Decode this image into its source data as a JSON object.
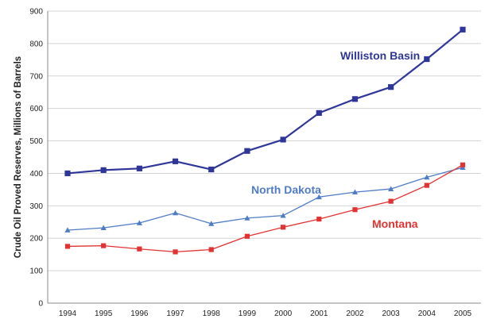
{
  "chart_data": {
    "type": "line",
    "title": "",
    "xlabel": "",
    "ylabel": "Crude Oil Proved Reserves, Millions of Barrels",
    "x": [
      "1994",
      "1995",
      "1996",
      "1997",
      "1998",
      "1999",
      "2000",
      "2001",
      "2002",
      "2003",
      "2004",
      "2005"
    ],
    "ylim": [
      0,
      900
    ],
    "yticks": [
      "0",
      "100",
      "200",
      "300",
      "400",
      "500",
      "600",
      "700",
      "800",
      "900"
    ],
    "grid": true,
    "legend": "inline labels",
    "series": [
      {
        "name": "Williston Basin",
        "color": "#2f3699",
        "marker": "square",
        "values": [
          400,
          410,
          415,
          437,
          412,
          469,
          504,
          586,
          629,
          666,
          752,
          843
        ]
      },
      {
        "name": "North Dakota",
        "color": "#4f7cc4",
        "marker": "triangle",
        "values": [
          225,
          232,
          247,
          278,
          245,
          262,
          270,
          327,
          342,
          352,
          388,
          418
        ]
      },
      {
        "name": "Montana",
        "color": "#e23232",
        "marker": "square",
        "values": [
          175,
          177,
          167,
          158,
          165,
          206,
          234,
          259,
          288,
          314,
          363,
          426
        ]
      }
    ]
  }
}
